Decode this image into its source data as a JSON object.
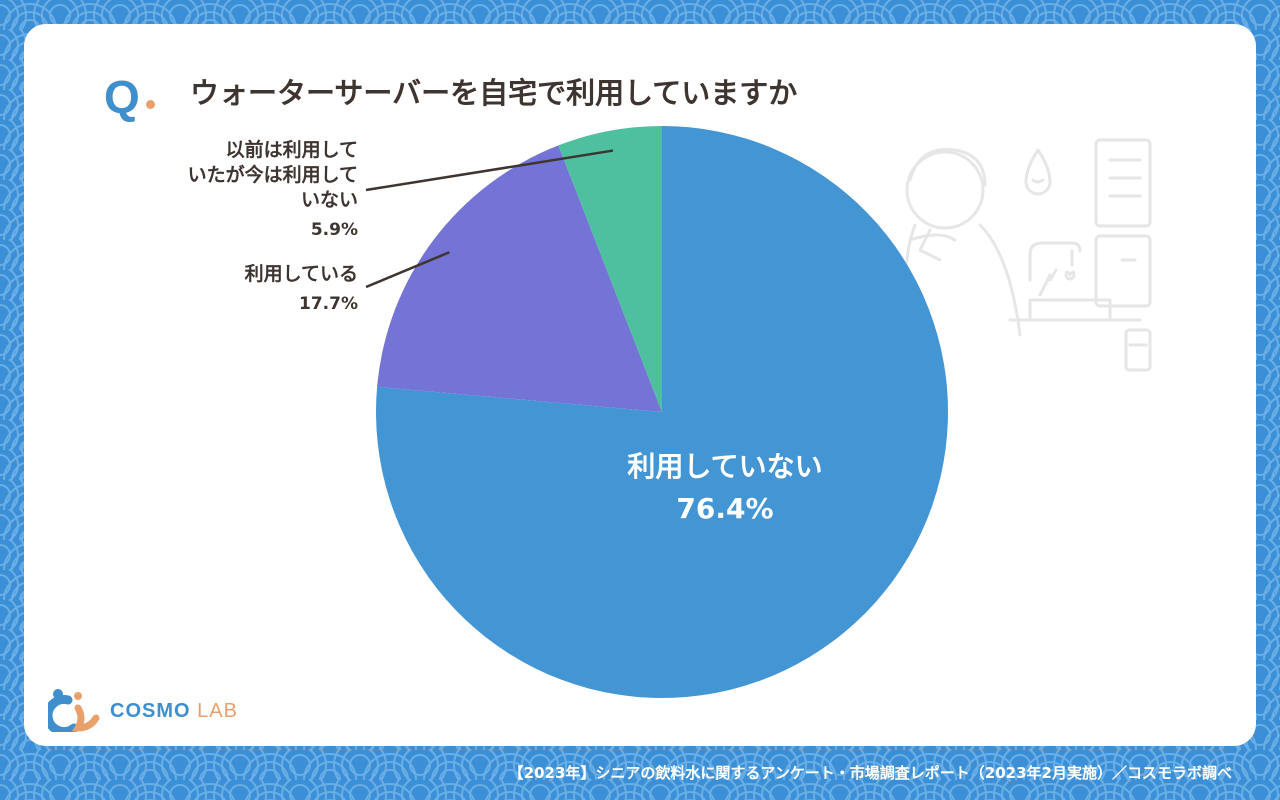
{
  "header": {
    "q_mark": "Q",
    "question": "ウォーターサーバーを自宅で利用していますか"
  },
  "chart_data": {
    "type": "pie",
    "title": "ウォーターサーバーを自宅で利用していますか",
    "slices": [
      {
        "label": "利用していない",
        "value": 76.4,
        "value_label": "76.4%",
        "color": "#4396d3"
      },
      {
        "label": "利用している",
        "value": 17.7,
        "value_label": "17.7%",
        "color": "#7474d6"
      },
      {
        "label": "以前は利用していたが今は利用していない",
        "value": 5.9,
        "value_label": "5.9%",
        "color": "#4fc09f"
      }
    ],
    "label_lines": {
      "former": [
        "以前は利用して",
        "いたが今は利用して",
        "いない"
      ]
    }
  },
  "brand": {
    "name": "COSMO",
    "suffix": "LAB",
    "primary_color": "#3f8fcd",
    "accent_color": "#e9a06a"
  },
  "footer": {
    "source": "【2023年】シニアの飲料水に関するアンケート・市場調査レポート（2023年2月実施）／コスモラボ調べ"
  },
  "colors": {
    "background": "#3b8fd6",
    "card": "#ffffff",
    "text": "#3e3430"
  }
}
